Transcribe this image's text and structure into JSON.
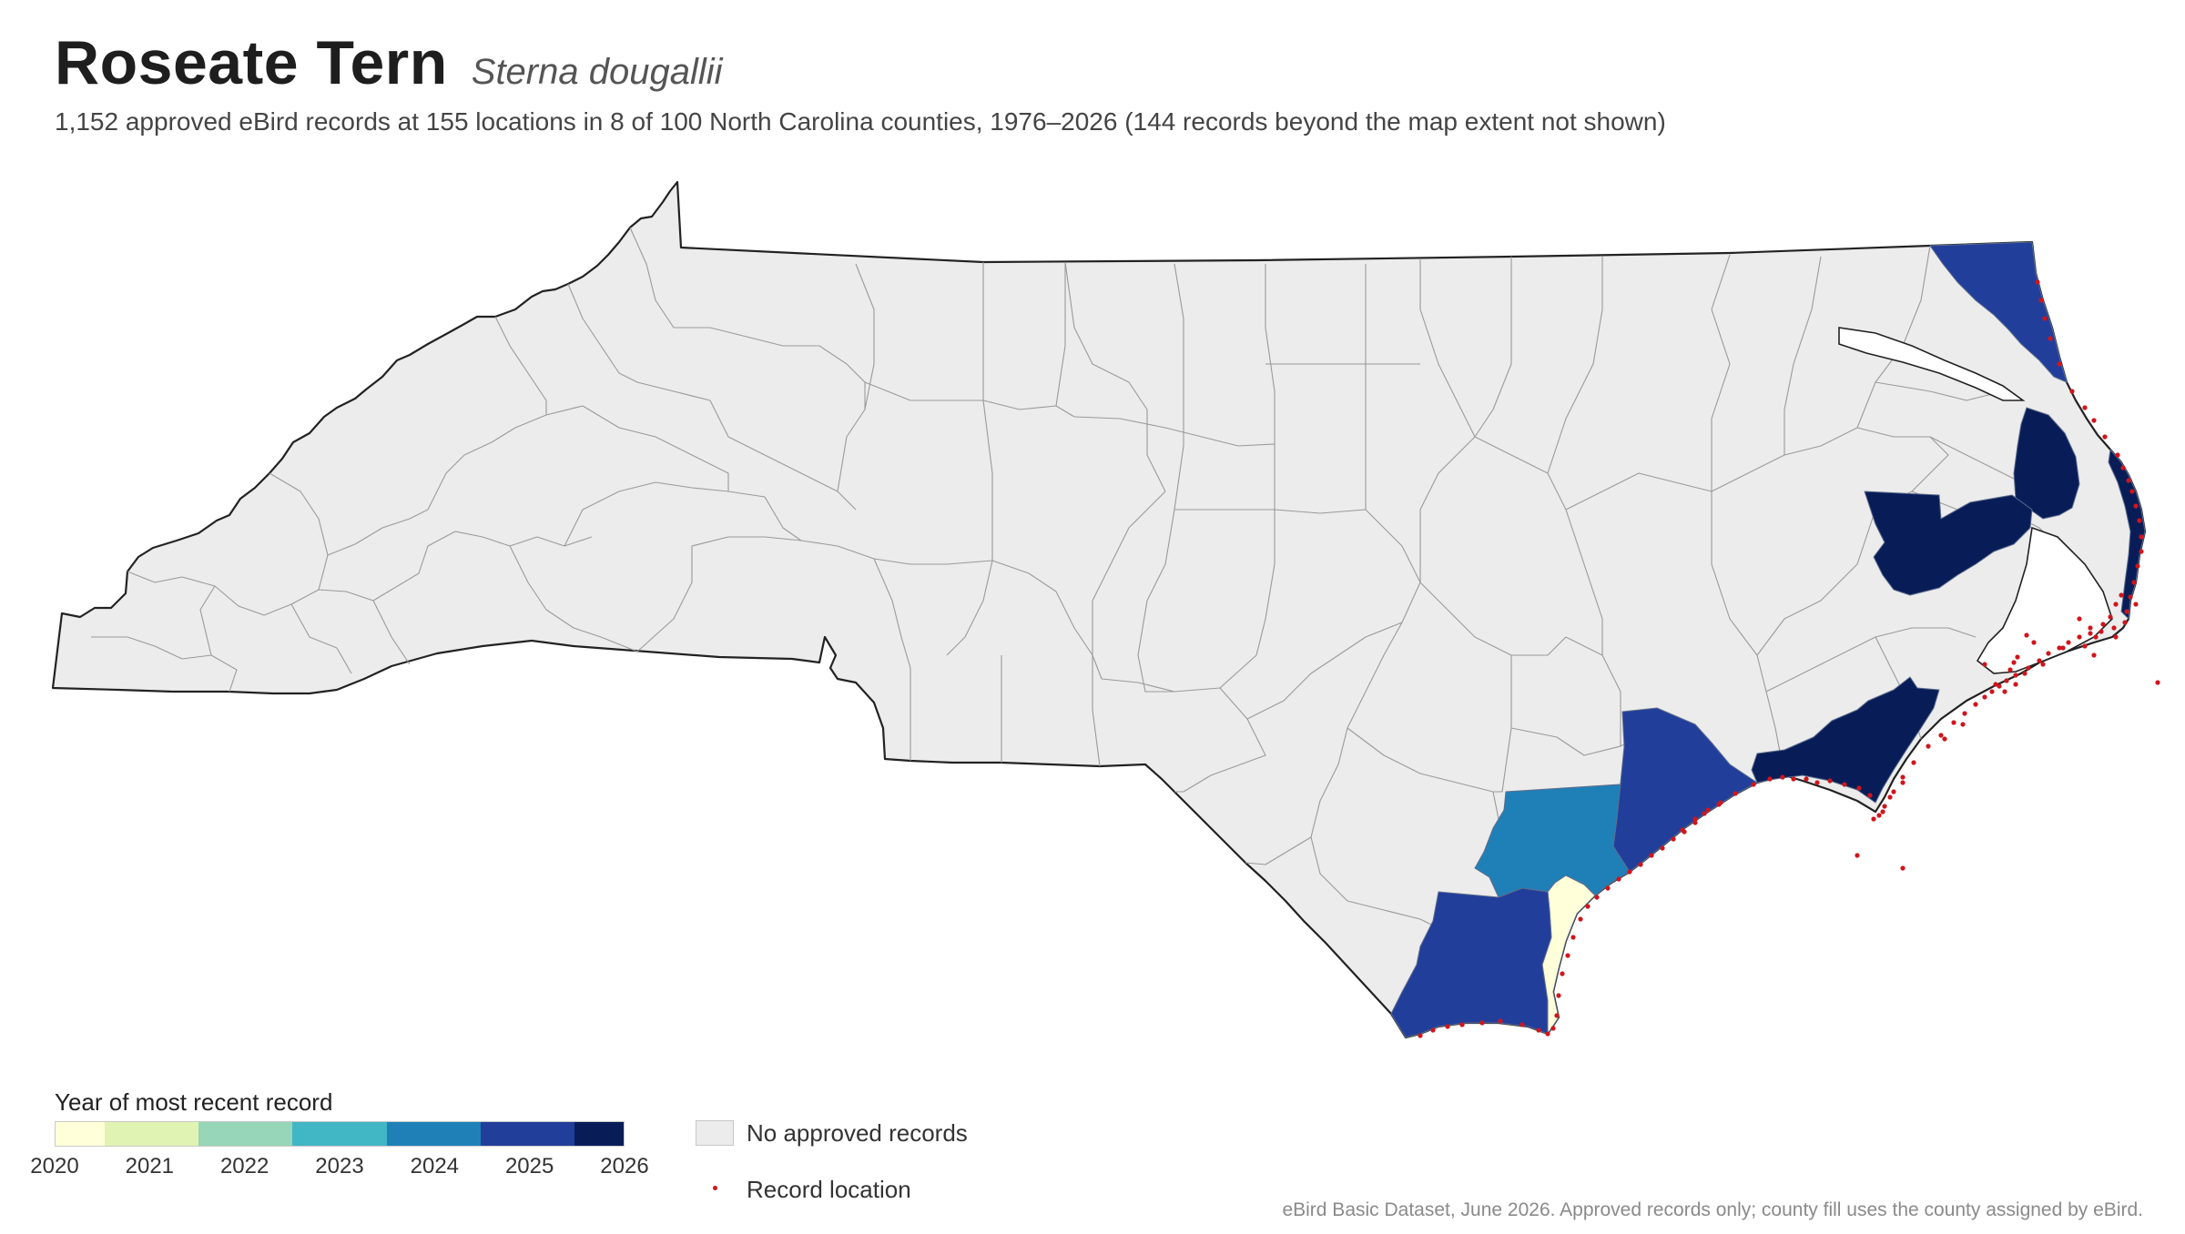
{
  "header": {
    "title": "Roseate Tern",
    "scientific_name": "Sterna dougallii",
    "subtitle": "1,152 approved eBird records at 155 locations in 8 of 100 North Carolina counties, 1976–2026 (144 records beyond the map extent not shown)"
  },
  "legend": {
    "title": "Year of most recent record",
    "ticks": [
      "2020",
      "2021",
      "2022",
      "2023",
      "2024",
      "2025",
      "2026"
    ],
    "bins": [
      {
        "label": "2020",
        "color": "#ffffd9"
      },
      {
        "label": "2021",
        "color": "#e0f3b2"
      },
      {
        "label": "2022",
        "color": "#97d6b9"
      },
      {
        "label": "2023",
        "color": "#41b6c4"
      },
      {
        "label": "2024",
        "color": "#1f80b8"
      },
      {
        "label": "2025",
        "color": "#223e9b"
      },
      {
        "label": "2026",
        "color": "#081d58"
      }
    ],
    "no_records_label": "No approved records",
    "no_records_color": "#ececec",
    "record_location_label": "Record location",
    "record_color": "#d0151c"
  },
  "map_data": {
    "region": "North Carolina",
    "colored_counties": [
      {
        "region": "Currituck",
        "year": 2025
      },
      {
        "region": "Dare",
        "year": 2026
      },
      {
        "region": "Hyde",
        "year": 2026
      },
      {
        "region": "Carteret",
        "year": 2026
      },
      {
        "region": "Onslow",
        "year": 2025
      },
      {
        "region": "Pender",
        "year": 2024
      },
      {
        "region": "New Hanover",
        "year": 2020
      },
      {
        "region": "Brunswick",
        "year": 2025
      }
    ]
  },
  "footer": {
    "source": "eBird Basic Dataset, June 2026. Approved records only; county fill uses the county assigned by eBird."
  }
}
